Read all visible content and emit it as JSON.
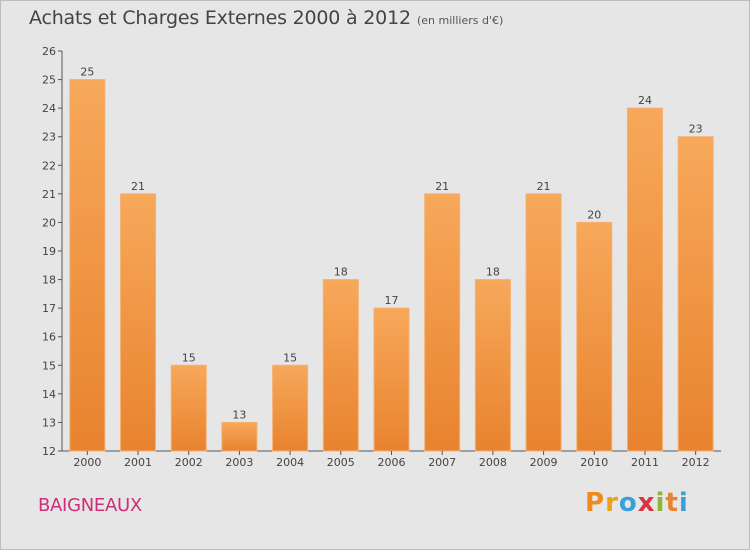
{
  "chart_data": {
    "type": "bar",
    "title": "Achats et Charges Externes 2000 à 2012",
    "unit_note": "(en milliers d'€)",
    "categories": [
      "2000",
      "2001",
      "2002",
      "2003",
      "2004",
      "2005",
      "2006",
      "2007",
      "2008",
      "2009",
      "2010",
      "2011",
      "2012"
    ],
    "values": [
      25,
      21,
      15,
      13,
      15,
      18,
      17,
      21,
      18,
      21,
      20,
      24,
      23
    ],
    "ylim": [
      12,
      26
    ],
    "yticks": [
      12,
      13,
      14,
      15,
      16,
      17,
      18,
      19,
      20,
      21,
      22,
      23,
      24,
      25,
      26
    ],
    "xlabel": "",
    "ylabel": "",
    "grid": false,
    "bar_color": "#e8832f",
    "bar_color_light": "#f7a85a"
  },
  "footer": {
    "location": "BAIGNEAUX",
    "brand_letters": [
      "P",
      "r",
      "o",
      "x",
      "i",
      "t",
      "i"
    ],
    "brand_colors": [
      "#f08a1d",
      "#e8a21c",
      "#3aa0d8",
      "#d9343f",
      "#8ab832",
      "#e8832f",
      "#3aa0d8"
    ]
  }
}
